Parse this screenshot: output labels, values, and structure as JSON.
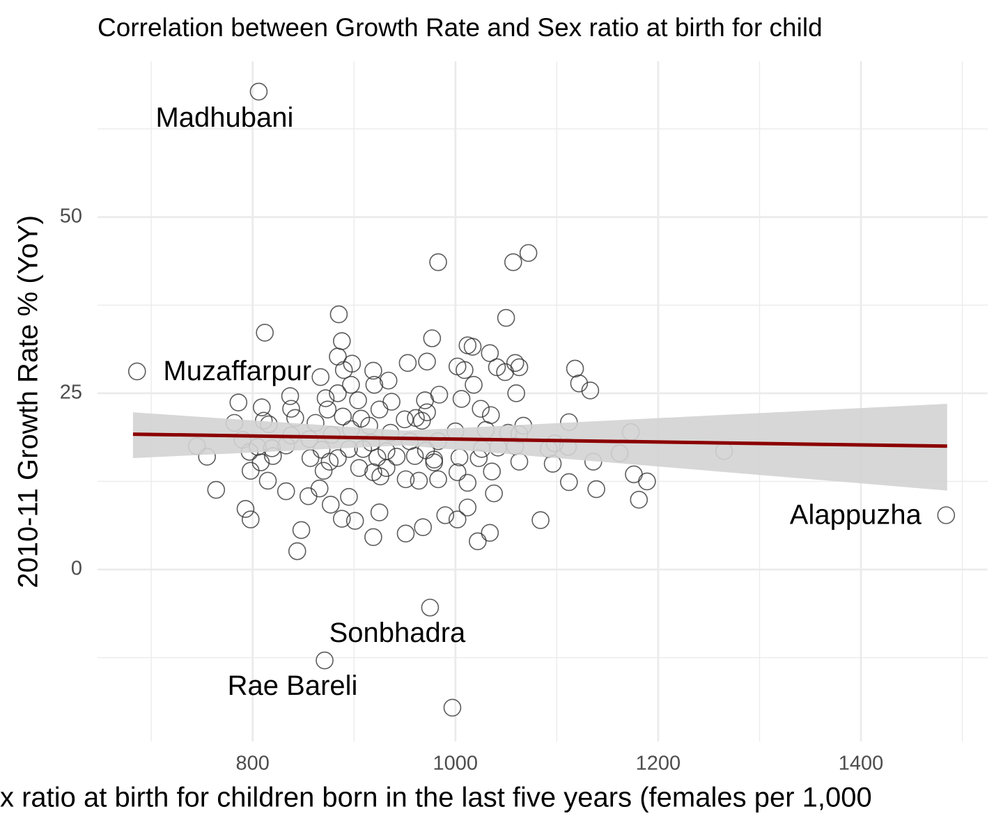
{
  "chart_data": {
    "type": "scatter",
    "title": "Correlation between Growth Rate and Sex ratio at birth for child",
    "x_label": "x ratio at birth for children born in the last five years (females per 1,000",
    "y_label": "2010-11 Growth Rate % (YoY)",
    "xlim": [
      647,
      1525
    ],
    "ylim": [
      -24.4,
      72.1
    ],
    "xticks": [
      800,
      1000,
      1200,
      1400
    ],
    "yticks": [
      0,
      25,
      50
    ],
    "x_minor_grid": [
      700,
      900,
      1100,
      1300,
      1500
    ],
    "y_minor_grid": [
      -12.5,
      12.5,
      37.5,
      62.5
    ],
    "grid": true,
    "color": "#333333",
    "x": [
      806,
      686,
      1484,
      975,
      871,
      997,
      983,
      1057,
      1072,
      885,
      1050,
      812,
      977,
      888,
      1012,
      1017,
      1034,
      884,
      898,
      953,
      972,
      1002,
      1059,
      1063,
      1118,
      890,
      919,
      1009,
      1041,
      1049,
      867,
      934,
      1018,
      920,
      1122,
      1133,
      897,
      884,
      1060,
      984,
      837,
      872,
      970,
      1006,
      786,
      904,
      937,
      809,
      838,
      925,
      1025,
      874,
      972,
      1035,
      889,
      811,
      816,
      842,
      862,
      907,
      950,
      961,
      967,
      782,
      1112,
      1067,
      915,
      1000,
      897,
      1052,
      1173,
      1063,
      1030,
      936,
      878,
      838,
      790,
      856,
      917,
      955,
      983,
      1098,
      745,
      805,
      819,
      833,
      797,
      868,
      895,
      909,
      932,
      971,
      1026,
      1042,
      1059,
      1092,
      1111,
      1162,
      1265,
      755,
      820,
      857,
      884,
      923,
      942,
      960,
      979,
      1004,
      1023,
      1063,
      1136,
      808,
      876,
      979,
      1096,
      798,
      870,
      905,
      919,
      932,
      1002,
      1036,
      1176,
      926,
      951,
      983,
      1012,
      815,
      964,
      1189,
      1112,
      764,
      833,
      866,
      1139,
      1038,
      855,
      895,
      1181,
      877,
      1012,
      793,
      925,
      990,
      798,
      888,
      901,
      1002,
      1084,
      968,
      848,
      951,
      1034,
      919,
      1022,
      844
    ],
    "values": [
      67.8,
      28.1,
      7.7,
      -5.4,
      -12.9,
      -19.6,
      43.6,
      43.6,
      44.9,
      36.2,
      35.7,
      33.6,
      32.8,
      32.4,
      31.8,
      31.6,
      30.7,
      30.2,
      29.2,
      29.3,
      29.5,
      28.8,
      29.3,
      28.7,
      28.5,
      28.3,
      28.2,
      28.3,
      28.7,
      28.0,
      27.3,
      26.8,
      26.2,
      26.2,
      26.4,
      25.4,
      26.2,
      25.0,
      25.0,
      24.8,
      24.6,
      24.3,
      24.0,
      24.2,
      23.7,
      24.0,
      23.8,
      23.0,
      22.8,
      22.7,
      22.8,
      22.7,
      22.3,
      21.9,
      21.7,
      21.1,
      20.6,
      21.5,
      20.8,
      21.4,
      21.3,
      21.5,
      21.1,
      20.8,
      20.9,
      20.4,
      20.4,
      19.6,
      19.9,
      19.4,
      19.5,
      19.2,
      19.8,
      19.4,
      19.1,
      19.0,
      18.4,
      18.5,
      18.0,
      18.2,
      18.2,
      17.9,
      17.5,
      17.4,
      17.2,
      17.6,
      16.7,
      17.0,
      17.1,
      17.1,
      16.8,
      16.9,
      17.1,
      17.3,
      17.5,
      17.1,
      17.4,
      16.5,
      16.8,
      16.0,
      16.1,
      15.8,
      15.8,
      15.9,
      16.0,
      16.1,
      15.6,
      15.9,
      15.8,
      15.3,
      15.3,
      15.2,
      15.3,
      15.2,
      15.0,
      14.0,
      14.0,
      14.4,
      13.8,
      14.4,
      13.8,
      13.9,
      13.5,
      13.2,
      12.8,
      12.8,
      12.3,
      12.6,
      12.6,
      12.5,
      12.4,
      11.3,
      11.1,
      11.5,
      11.4,
      10.8,
      10.4,
      10.3,
      9.9,
      9.2,
      8.8,
      8.6,
      8.1,
      7.7,
      7.1,
      7.2,
      6.9,
      7.1,
      7.0,
      6.0,
      5.6,
      5.1,
      5.2,
      4.6,
      4.0,
      2.6
    ],
    "labels": [
      "Madhubani",
      "Muzaffarpur",
      "Alappuzha",
      "Sonbhadra",
      "Rae Bareli",
      null,
      null,
      null,
      null,
      null,
      null,
      null,
      null,
      null,
      null,
      null,
      null,
      null,
      null,
      null,
      null,
      null,
      null,
      null,
      null,
      null,
      null,
      null,
      null,
      null,
      null,
      null,
      null,
      null,
      null,
      null,
      null,
      null,
      null,
      null,
      null,
      null,
      null,
      null,
      null,
      null,
      null,
      null,
      null,
      null,
      null,
      null,
      null,
      null,
      null,
      null,
      null,
      null,
      null,
      null,
      null,
      null,
      null,
      null,
      null,
      null,
      null,
      null,
      null,
      null,
      null,
      null,
      null,
      null,
      null,
      null,
      null,
      null,
      null,
      null,
      null,
      null,
      null,
      null,
      null,
      null,
      null,
      null,
      null,
      null,
      null,
      null,
      null,
      null,
      null,
      null,
      null,
      null,
      null,
      null,
      null,
      null,
      null,
      null,
      null,
      null,
      null,
      null,
      null,
      null,
      null,
      null,
      null,
      null,
      null,
      null,
      null,
      null,
      null,
      null,
      null,
      null,
      null,
      null,
      null,
      null,
      null,
      null,
      null,
      null,
      null,
      null,
      null,
      null,
      null,
      null,
      null,
      null,
      null,
      null,
      null,
      null,
      null,
      null,
      null,
      null,
      null,
      null,
      null,
      null,
      null,
      null,
      null,
      null,
      null,
      null
    ],
    "trend": {
      "color": "#8b0000",
      "band_color": "#d3d3d3",
      "x": [
        682,
        950,
        1485
      ],
      "values": [
        19.2,
        18.6,
        17.5
      ],
      "lower": [
        15.8,
        17.6,
        11.2
      ],
      "upper": [
        22.3,
        19.7,
        23.5
      ]
    }
  }
}
